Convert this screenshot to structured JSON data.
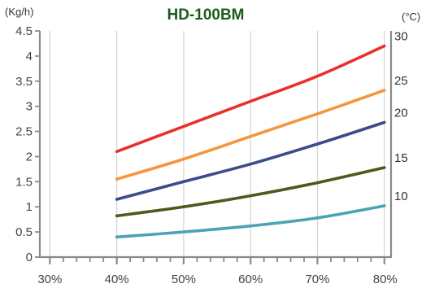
{
  "chart_data": {
    "type": "line",
    "title": "HD-100BM",
    "ylabel": "(Kg/h)",
    "series_unit_label": "(°C)",
    "xlabel": "",
    "x_ticks": [
      "30%",
      "40%",
      "50%",
      "60%",
      "70%",
      "80%"
    ],
    "x_tick_values": [
      30,
      40,
      50,
      60,
      70,
      80
    ],
    "xlim": [
      28.5,
      81
    ],
    "y_ticks": [
      "0",
      "0.5",
      "1",
      "1.5",
      "2",
      "2.5",
      "3",
      "3.5",
      "4",
      "4.5"
    ],
    "y_tick_values": [
      0,
      0.5,
      1,
      1.5,
      2,
      2.5,
      3,
      3.5,
      4,
      4.5
    ],
    "ylim": [
      0,
      4.5
    ],
    "grid": "vertical",
    "legend": "inline-right",
    "x": [
      40,
      50,
      60,
      70,
      80
    ],
    "series": [
      {
        "name": "30",
        "color": "#e8312a",
        "values": [
          2.1,
          2.6,
          3.1,
          3.6,
          4.2
        ]
      },
      {
        "name": "25",
        "color": "#f7943c",
        "values": [
          1.55,
          1.95,
          2.4,
          2.85,
          3.32
        ]
      },
      {
        "name": "20",
        "color": "#3b4b8c",
        "values": [
          1.15,
          1.5,
          1.85,
          2.25,
          2.68
        ]
      },
      {
        "name": "15",
        "color": "#4b5a1e",
        "values": [
          0.82,
          1.0,
          1.22,
          1.48,
          1.78
        ]
      },
      {
        "name": "10",
        "color": "#4ba3b5",
        "values": [
          0.4,
          0.5,
          0.62,
          0.78,
          1.02
        ]
      }
    ]
  }
}
